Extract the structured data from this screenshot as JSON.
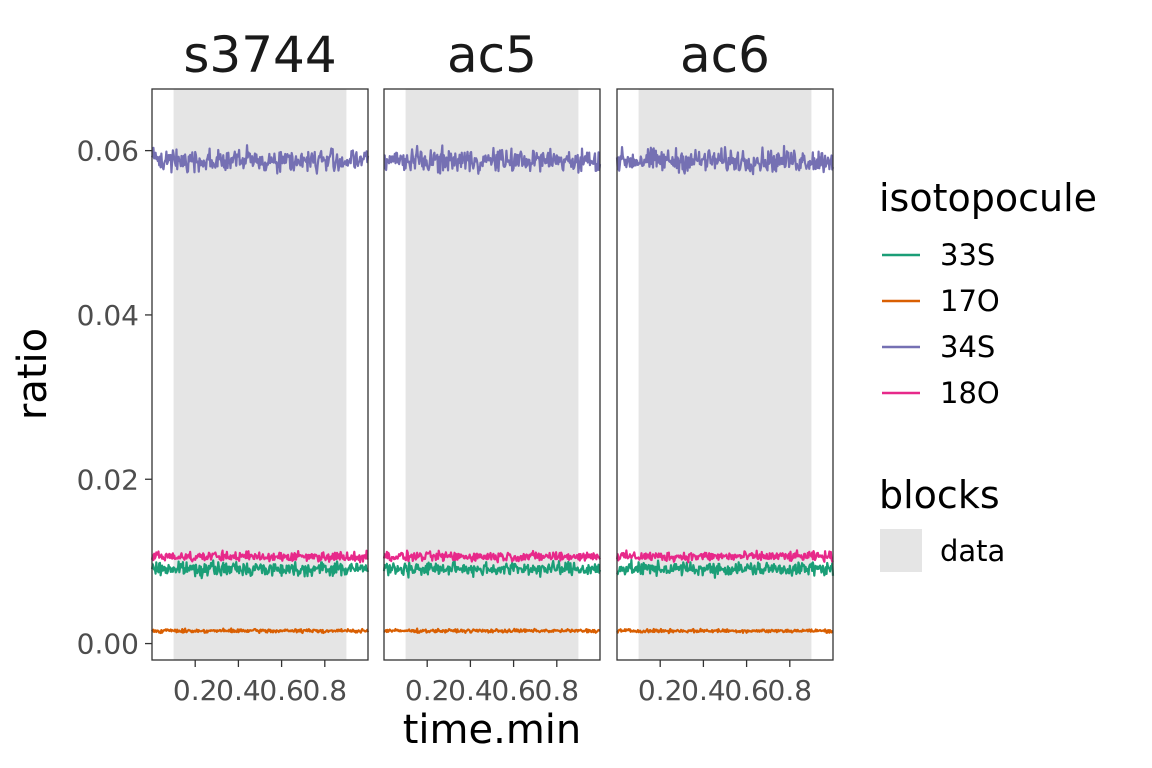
{
  "chart_data": {
    "type": "line",
    "xlabel": "time.min",
    "ylabel": "ratio",
    "xlim": [
      0.0,
      1.0
    ],
    "ylim": [
      -0.002,
      0.0675
    ],
    "x_ticks": [
      0.2,
      0.4,
      0.6,
      0.8
    ],
    "x_tick_labels": [
      "0.2",
      "0.4",
      "0.6",
      "0.8"
    ],
    "y_ticks": [
      0.0,
      0.02,
      0.04,
      0.06
    ],
    "y_tick_labels": [
      "0.00",
      "0.02",
      "0.04",
      "0.06"
    ],
    "grid": false,
    "facets": [
      {
        "title": "s3744",
        "block": {
          "label": "data",
          "start": 0.1,
          "end": 0.9
        }
      },
      {
        "title": "ac5",
        "block": {
          "label": "data",
          "start": 0.1,
          "end": 0.9
        }
      },
      {
        "title": "ac6",
        "block": {
          "label": "data",
          "start": 0.1,
          "end": 0.9
        }
      }
    ],
    "series": [
      {
        "name": "33S",
        "color": "#1B9E77",
        "mean": 0.0091,
        "noise": 0.0007
      },
      {
        "name": "17O",
        "color": "#D95F02",
        "mean": 0.00155,
        "noise": 0.00018
      },
      {
        "name": "34S",
        "color": "#7570B3",
        "mean": 0.0588,
        "noise": 0.0012
      },
      {
        "name": "18O",
        "color": "#E7298A",
        "mean": 0.0106,
        "noise": 0.0005
      }
    ],
    "legend": {
      "position": "right",
      "color_title": "isotopocule",
      "fill_title": "blocks",
      "fill_label": "data",
      "fill_color": "#E5E5E5"
    }
  }
}
